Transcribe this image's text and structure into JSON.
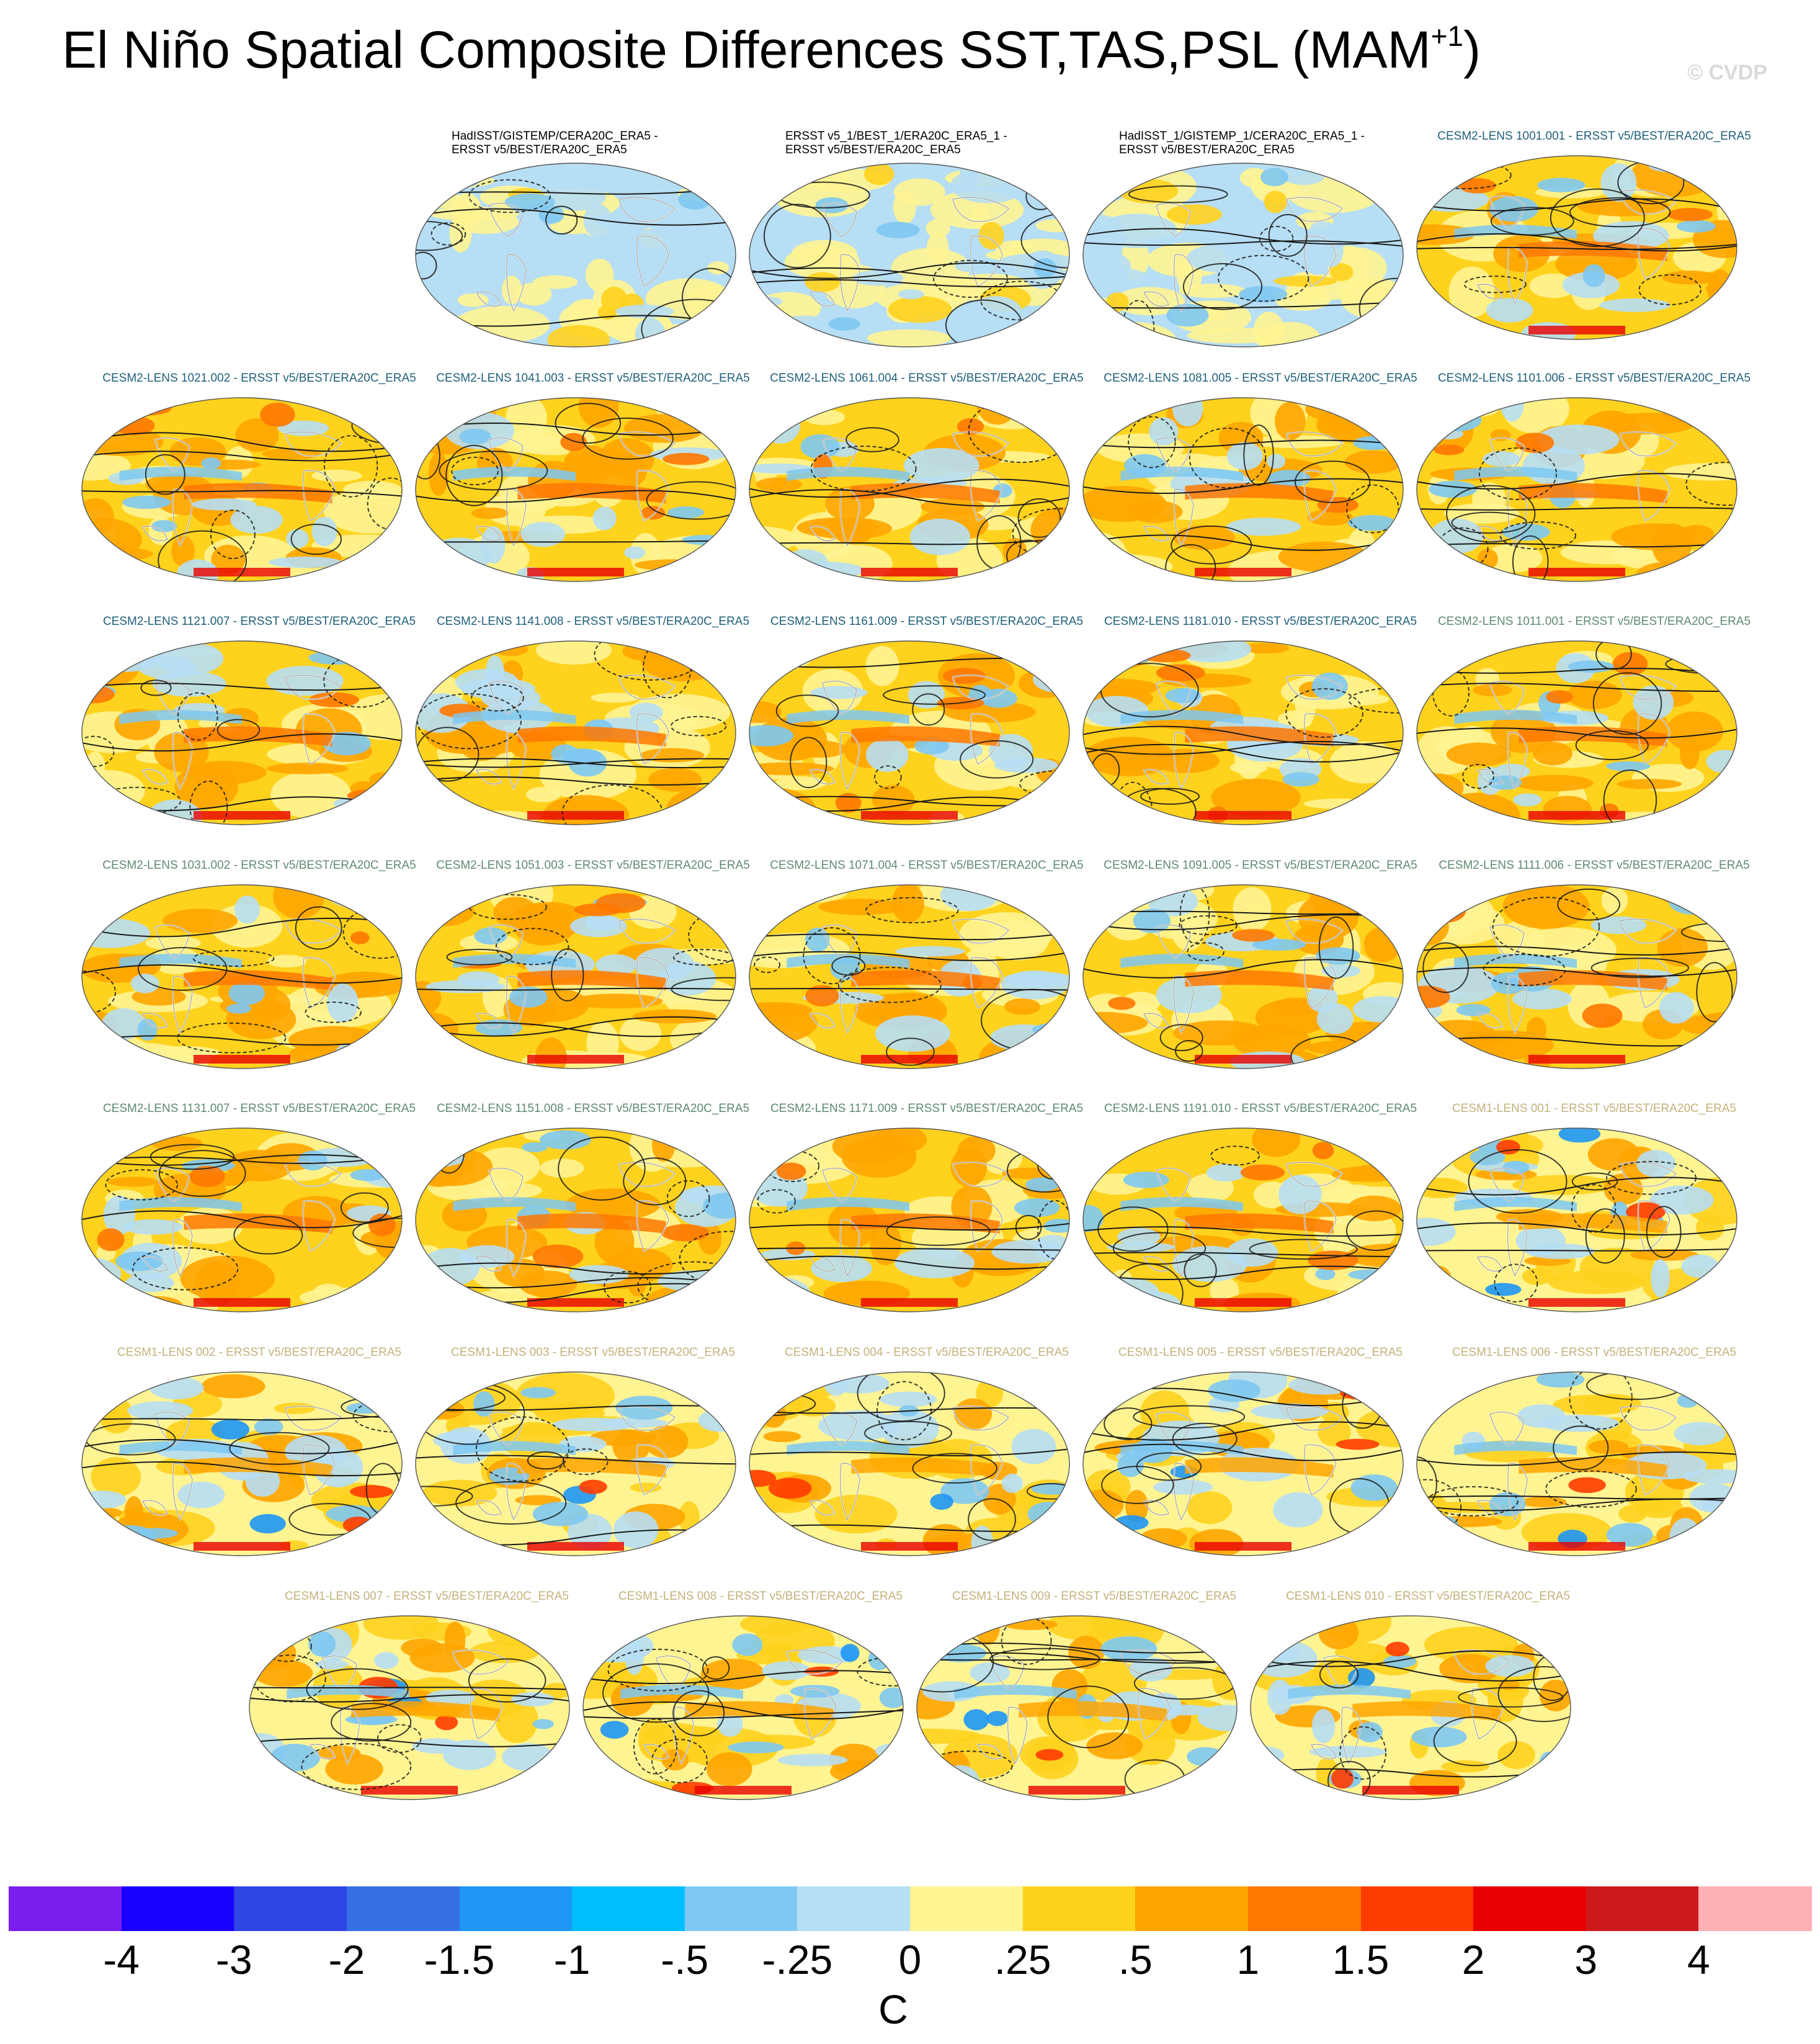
{
  "title": {
    "main": "El Niño Spatial Composite Differences SST,TAS,PSL (MAM",
    "superscript": "+1",
    "close": ")"
  },
  "watermark": "© CVDP",
  "panels": [
    {
      "label": "HadISST/GISTEMP/CERA20C_ERA5 -\nERSST v5/BEST/ERA20C_ERA5",
      "color": "#000000",
      "align": "left",
      "row": 0,
      "col": 1,
      "pattern": "obs"
    },
    {
      "label": "ERSST v5_1/BEST_1/ERA20C_ERA5_1 -\nERSST v5/BEST/ERA20C_ERA5",
      "color": "#000000",
      "align": "left",
      "row": 0,
      "col": 2,
      "pattern": "obs"
    },
    {
      "label": "HadISST_1/GISTEMP_1/CERA20C_ERA5_1 -\nERSST v5/BEST/ERA20C_ERA5",
      "color": "#000000",
      "align": "left",
      "row": 0,
      "col": 3,
      "pattern": "obs"
    },
    {
      "label": "CESM2-LENS 1001.001 - ERSST v5/BEST/ERA20C_ERA5",
      "color": "#1f5f7a",
      "align": "center",
      "row": 0,
      "col": 4,
      "pattern": "model"
    },
    {
      "label": "CESM2-LENS 1021.002 - ERSST v5/BEST/ERA20C_ERA5",
      "color": "#1f5f7a",
      "align": "center",
      "row": 1,
      "col": 0,
      "pattern": "model"
    },
    {
      "label": "CESM2-LENS 1041.003 - ERSST v5/BEST/ERA20C_ERA5",
      "color": "#1f5f7a",
      "align": "center",
      "row": 1,
      "col": 1,
      "pattern": "model"
    },
    {
      "label": "CESM2-LENS 1061.004 - ERSST v5/BEST/ERA20C_ERA5",
      "color": "#1f5f7a",
      "align": "center",
      "row": 1,
      "col": 2,
      "pattern": "model"
    },
    {
      "label": "CESM2-LENS 1081.005 - ERSST v5/BEST/ERA20C_ERA5",
      "color": "#1f5f7a",
      "align": "center",
      "row": 1,
      "col": 3,
      "pattern": "model"
    },
    {
      "label": "CESM2-LENS 1101.006 - ERSST v5/BEST/ERA20C_ERA5",
      "color": "#1f5f7a",
      "align": "center",
      "row": 1,
      "col": 4,
      "pattern": "model"
    },
    {
      "label": "CESM2-LENS 1121.007 - ERSST v5/BEST/ERA20C_ERA5",
      "color": "#1f5f7a",
      "align": "center",
      "row": 2,
      "col": 0,
      "pattern": "model"
    },
    {
      "label": "CESM2-LENS 1141.008 - ERSST v5/BEST/ERA20C_ERA5",
      "color": "#1f5f7a",
      "align": "center",
      "row": 2,
      "col": 1,
      "pattern": "model"
    },
    {
      "label": "CESM2-LENS 1161.009 - ERSST v5/BEST/ERA20C_ERA5",
      "color": "#1f5f7a",
      "align": "center",
      "row": 2,
      "col": 2,
      "pattern": "model"
    },
    {
      "label": "CESM2-LENS 1181.010 - ERSST v5/BEST/ERA20C_ERA5",
      "color": "#1f5f7a",
      "align": "center",
      "row": 2,
      "col": 3,
      "pattern": "model"
    },
    {
      "label": "CESM2-LENS 1011.001 - ERSST v5/BEST/ERA20C_ERA5",
      "color": "#5f8a70",
      "align": "center",
      "row": 2,
      "col": 4,
      "pattern": "model"
    },
    {
      "label": "CESM2-LENS 1031.002 - ERSST v5/BEST/ERA20C_ERA5",
      "color": "#5f8a70",
      "align": "center",
      "row": 3,
      "col": 0,
      "pattern": "model"
    },
    {
      "label": "CESM2-LENS 1051.003 - ERSST v5/BEST/ERA20C_ERA5",
      "color": "#5f8a70",
      "align": "center",
      "row": 3,
      "col": 1,
      "pattern": "model"
    },
    {
      "label": "CESM2-LENS 1071.004 - ERSST v5/BEST/ERA20C_ERA5",
      "color": "#5f8a70",
      "align": "center",
      "row": 3,
      "col": 2,
      "pattern": "model"
    },
    {
      "label": "CESM2-LENS 1091.005 - ERSST v5/BEST/ERA20C_ERA5",
      "color": "#5f8a70",
      "align": "center",
      "row": 3,
      "col": 3,
      "pattern": "model"
    },
    {
      "label": "CESM2-LENS 1111.006 - ERSST v5/BEST/ERA20C_ERA5",
      "color": "#5f8a70",
      "align": "center",
      "row": 3,
      "col": 4,
      "pattern": "model"
    },
    {
      "label": "CESM2-LENS 1131.007 - ERSST v5/BEST/ERA20C_ERA5",
      "color": "#5f8a70",
      "align": "center",
      "row": 4,
      "col": 0,
      "pattern": "model"
    },
    {
      "label": "CESM2-LENS 1151.008 - ERSST v5/BEST/ERA20C_ERA5",
      "color": "#5f8a70",
      "align": "center",
      "row": 4,
      "col": 1,
      "pattern": "model"
    },
    {
      "label": "CESM2-LENS 1171.009 - ERSST v5/BEST/ERA20C_ERA5",
      "color": "#5f8a70",
      "align": "center",
      "row": 4,
      "col": 2,
      "pattern": "model"
    },
    {
      "label": "CESM2-LENS 1191.010 - ERSST v5/BEST/ERA20C_ERA5",
      "color": "#5f8a70",
      "align": "center",
      "row": 4,
      "col": 3,
      "pattern": "model"
    },
    {
      "label": "CESM1-LENS 001 - ERSST v5/BEST/ERA20C_ERA5",
      "color": "#c2b27a",
      "align": "center",
      "row": 4,
      "col": 4,
      "pattern": "cesm1"
    },
    {
      "label": "CESM1-LENS 002 - ERSST v5/BEST/ERA20C_ERA5",
      "color": "#c2b27a",
      "align": "center",
      "row": 5,
      "col": 0,
      "pattern": "cesm1"
    },
    {
      "label": "CESM1-LENS 003 - ERSST v5/BEST/ERA20C_ERA5",
      "color": "#c2b27a",
      "align": "center",
      "row": 5,
      "col": 1,
      "pattern": "cesm1"
    },
    {
      "label": "CESM1-LENS 004 - ERSST v5/BEST/ERA20C_ERA5",
      "color": "#c2b27a",
      "align": "center",
      "row": 5,
      "col": 2,
      "pattern": "cesm1"
    },
    {
      "label": "CESM1-LENS 005 - ERSST v5/BEST/ERA20C_ERA5",
      "color": "#c2b27a",
      "align": "center",
      "row": 5,
      "col": 3,
      "pattern": "cesm1"
    },
    {
      "label": "CESM1-LENS 006 - ERSST v5/BEST/ERA20C_ERA5",
      "color": "#c2b27a",
      "align": "center",
      "row": 5,
      "col": 4,
      "pattern": "cesm1"
    },
    {
      "label": "CESM1-LENS 007 - ERSST v5/BEST/ERA20C_ERA5",
      "color": "#c2b27a",
      "align": "center",
      "row": 6,
      "col": 0,
      "pattern": "cesm1"
    },
    {
      "label": "CESM1-LENS 008 - ERSST v5/BEST/ERA20C_ERA5",
      "color": "#c2b27a",
      "align": "center",
      "row": 6,
      "col": 1,
      "pattern": "cesm1"
    },
    {
      "label": "CESM1-LENS 009 - ERSST v5/BEST/ERA20C_ERA5",
      "color": "#c2b27a",
      "align": "center",
      "row": 6,
      "col": 2,
      "pattern": "cesm1"
    },
    {
      "label": "CESM1-LENS 010 - ERSST v5/BEST/ERA20C_ERA5",
      "color": "#c2b27a",
      "align": "center",
      "row": 6,
      "col": 3,
      "pattern": "cesm1"
    }
  ],
  "colorbar": {
    "colors": [
      "#7b1fef",
      "#1a00ff",
      "#2f45e6",
      "#3570e3",
      "#1e96f5",
      "#00bfff",
      "#7ec8f2",
      "#b6def4",
      "#fff492",
      "#ffd21e",
      "#ffa500",
      "#ff7800",
      "#ff3c00",
      "#e80000",
      "#cc1a1a",
      "#ffb0b4"
    ],
    "ticks": [
      "-4",
      "-3",
      "-2",
      "-1.5",
      "-1",
      "-.5",
      "-.25",
      "0",
      ".25",
      ".5",
      "1",
      "1.5",
      "2",
      "3",
      "4"
    ],
    "units": "C"
  }
}
